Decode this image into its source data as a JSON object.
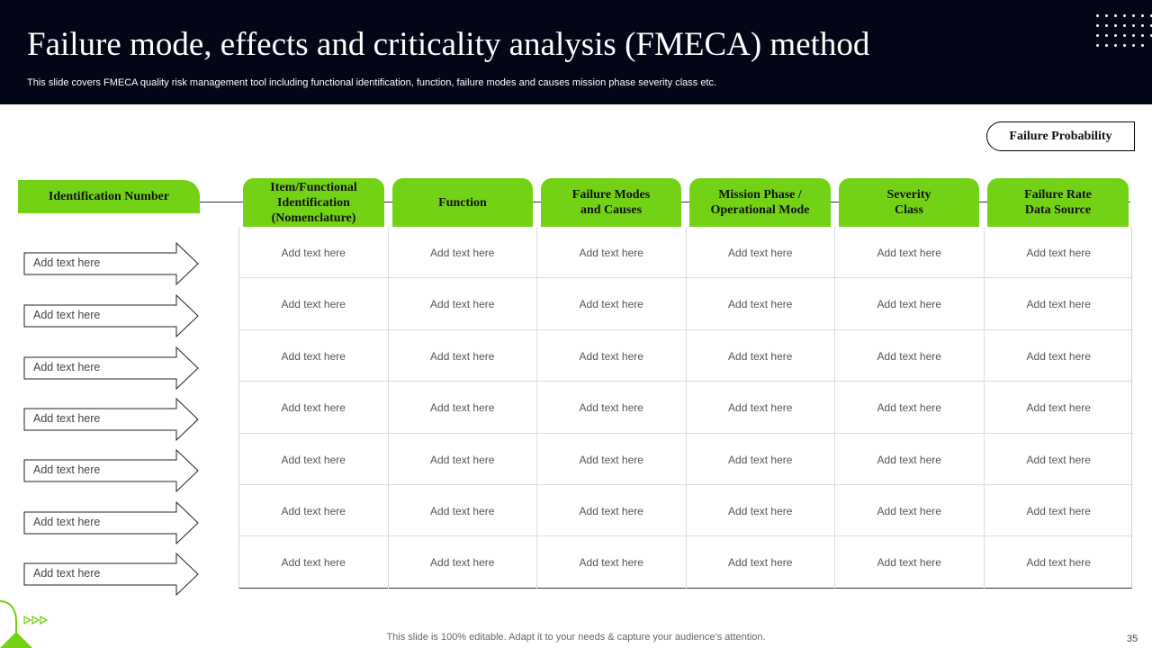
{
  "slide": {
    "title": "Failure mode, effects and criticality analysis (FMECA) method",
    "subtitle": "This slide covers FMECA  quality risk management tool including functional identification, function, failure modes and causes mission phase severity class etc.",
    "failure_probability_label": "Failure  Probability",
    "identification_header": "Identification Number",
    "columns": [
      "Item/Functional\nIdentification\n(Nomenclature)",
      "Function",
      "Failure Modes\nand Causes",
      "Mission Phase /\nOperational Mode",
      "Severity\nClass",
      "Failure Rate\nData Source"
    ],
    "row_labels": [
      "Add text here",
      "Add text here",
      "Add text here",
      "Add text here",
      "Add text here",
      "Add text here",
      "Add text here"
    ],
    "rows": [
      [
        "Add text here",
        "Add text here",
        "Add text here",
        "Add text here",
        "Add text here",
        "Add text here"
      ],
      [
        "Add text here",
        "Add text here",
        "Add text here",
        "Add text here",
        "Add text here",
        "Add text here"
      ],
      [
        "Add text here",
        "Add text here",
        "Add text here",
        "Add text here",
        "Add text here",
        "Add text here"
      ],
      [
        "Add text here",
        "Add text here",
        "Add text here",
        "Add text here",
        "Add text here",
        "Add text here"
      ],
      [
        "Add text here",
        "Add text here",
        "Add text here",
        "Add text here",
        "Add text here",
        "Add text here"
      ],
      [
        "Add text here",
        "Add text here",
        "Add text here",
        "Add text here",
        "Add text here",
        "Add text here"
      ],
      [
        "Add text here",
        "Add text here",
        "Add text here",
        "Add text here",
        "Add text here",
        "Add text here"
      ]
    ],
    "footer": "This slide is 100% editable. Adapt it to your needs & capture your audience’s attention.",
    "page_number": "35"
  },
  "colors": {
    "header_bg": "#020617",
    "accent_green": "#73d216"
  },
  "icons": [
    "dots-grid-icon",
    "arrow-shape-icon",
    "play-triangles-icon"
  ]
}
